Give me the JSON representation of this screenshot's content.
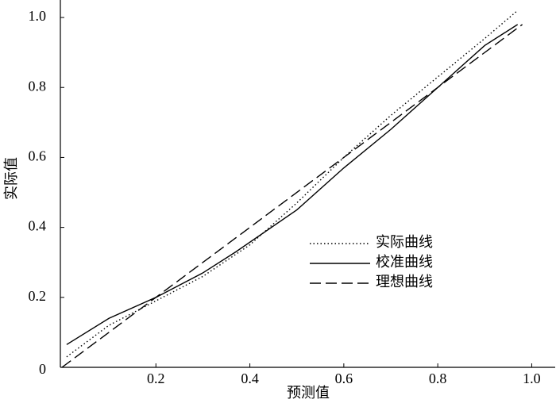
{
  "chart_data": {
    "type": "line",
    "x_label": "预测值",
    "y_label": "实际值",
    "xlim": [
      0,
      1.05
    ],
    "ylim": [
      0,
      1.05
    ],
    "xticks": [
      0.2,
      0.4,
      0.6,
      0.8,
      {
        "value": 1,
        "label": "1.0"
      }
    ],
    "yticks": [
      0,
      0.2,
      0.4,
      0.6,
      0.8,
      {
        "value": 1,
        "label": "1.0"
      }
    ],
    "series": [
      {
        "name": "实际曲线",
        "color": "#000000",
        "style": "dotted",
        "x": [
          0.01,
          0.1,
          0.2,
          0.3,
          0.4,
          0.5,
          0.6,
          0.7,
          0.8,
          0.9,
          0.97
        ],
        "values": [
          0.03,
          0.12,
          0.19,
          0.26,
          0.35,
          0.47,
          0.6,
          0.72,
          0.83,
          0.94,
          1.02
        ]
      },
      {
        "name": "校准曲线",
        "color": "#000000",
        "style": "solid",
        "x": [
          0.01,
          0.1,
          0.2,
          0.3,
          0.37,
          0.5,
          0.6,
          0.7,
          0.8,
          0.9,
          0.97
        ],
        "values": [
          0.065,
          0.14,
          0.2,
          0.27,
          0.33,
          0.45,
          0.57,
          0.68,
          0.8,
          0.92,
          0.98
        ]
      },
      {
        "name": "理想曲线",
        "color": "#000000",
        "style": "dashed",
        "x": [
          0,
          0.98
        ],
        "values": [
          0,
          0.98
        ]
      }
    ]
  }
}
